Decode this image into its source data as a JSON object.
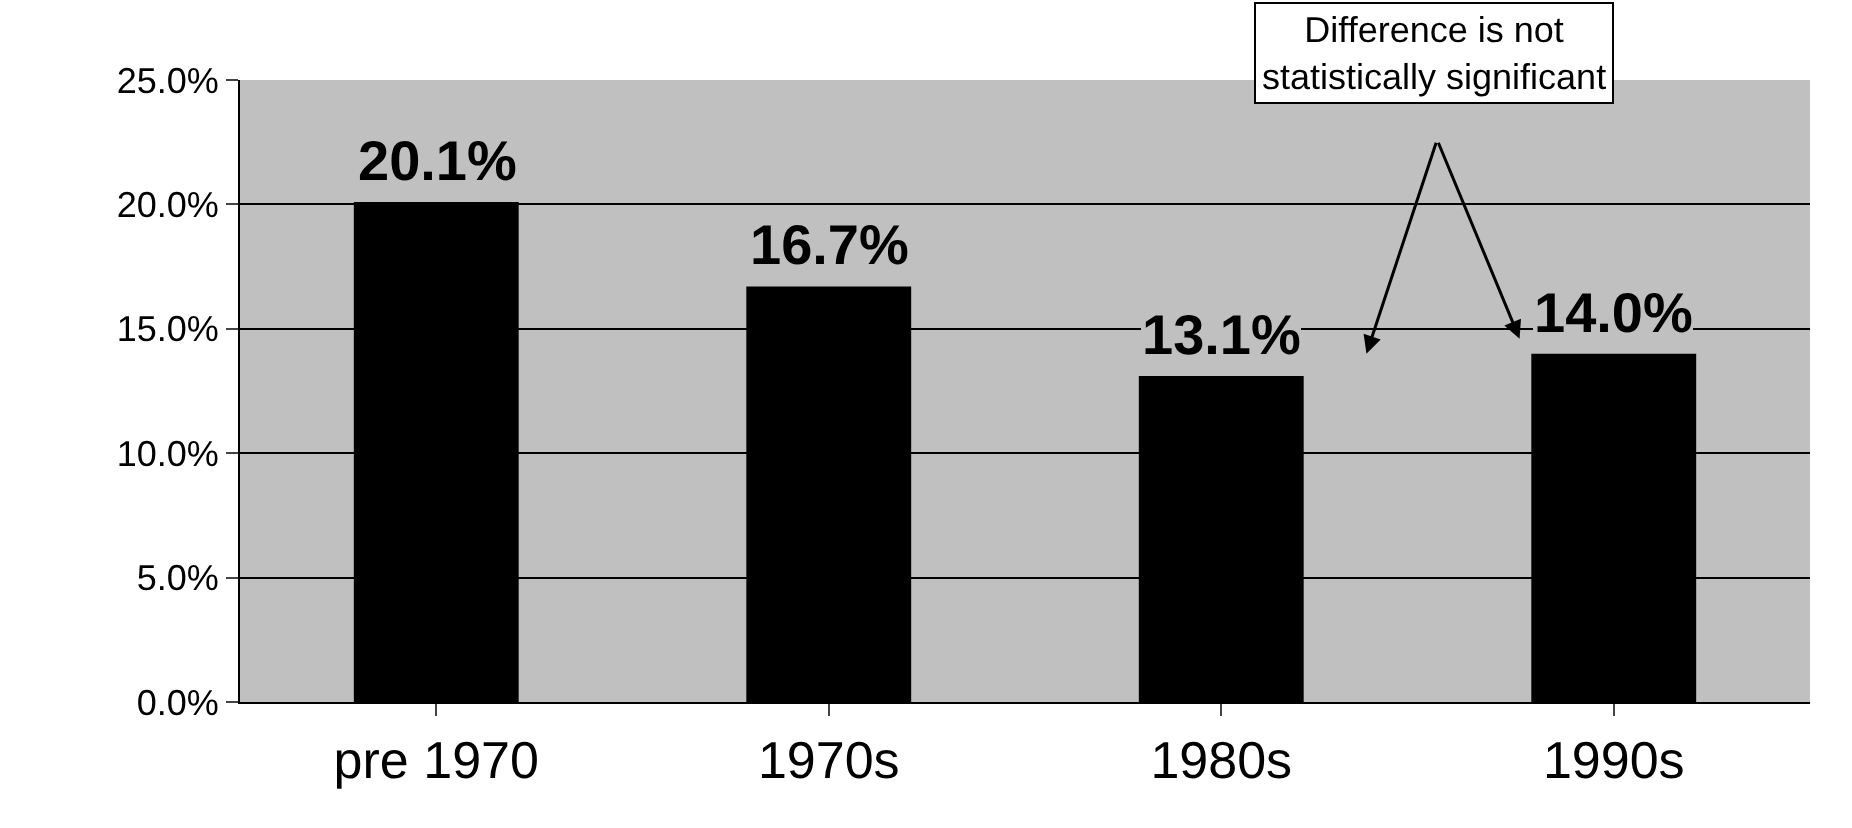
{
  "chart_data": {
    "type": "bar",
    "categories": [
      "pre 1970",
      "1970s",
      "1980s",
      "1990s"
    ],
    "series": [
      {
        "color": "#000000",
        "values": [
          20.1,
          16.7,
          13.1,
          14.0
        ]
      }
    ],
    "value_labels": [
      "20.1%",
      "16.7%",
      "13.1%",
      "14.0%"
    ],
    "ylim": [
      0,
      25
    ],
    "yticks": [
      {
        "value": 0,
        "label": "0.0%"
      },
      {
        "value": 5,
        "label": "5.0%"
      },
      {
        "value": 10,
        "label": "10.0%"
      },
      {
        "value": 15,
        "label": "15.0%"
      },
      {
        "value": 20,
        "label": "20.0%"
      },
      {
        "value": 25,
        "label": "25.0%"
      }
    ],
    "grid": "y",
    "annotations": [
      "Difference is not\nstatistically significant"
    ]
  }
}
